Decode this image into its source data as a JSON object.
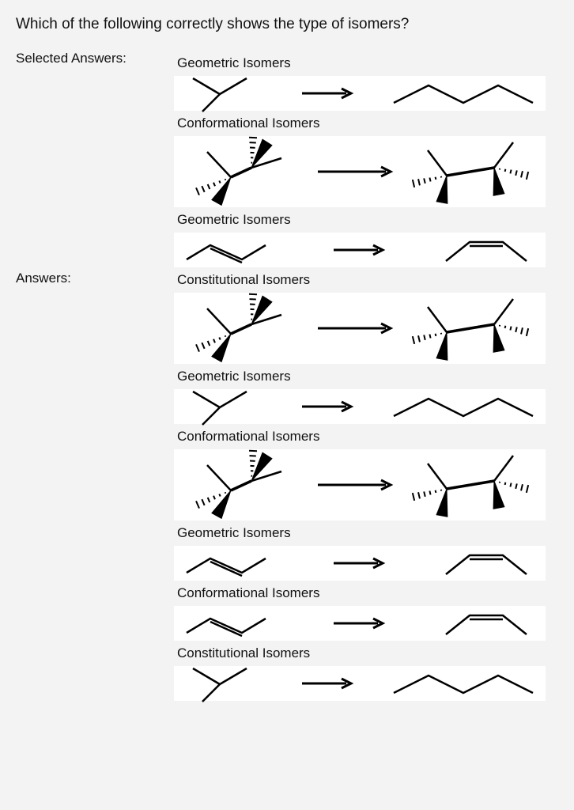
{
  "question": "Which of the following correctly shows the type of isomers?",
  "labels": {
    "selected": "Selected Answers:",
    "answers": "Answers:"
  },
  "selected_answers": [
    {
      "label": "Geometric Isomers",
      "left": "isobutane",
      "right": "butane",
      "height": "short"
    },
    {
      "label": "Conformational Isomers",
      "left": "eclipsed",
      "right": "staggered",
      "height": "tall"
    },
    {
      "label": "Geometric Isomers",
      "left": "trans",
      "right": "cis",
      "height": "short"
    }
  ],
  "all_answers": [
    {
      "label": "Constitutional Isomers",
      "left": "eclipsed",
      "right": "staggered",
      "height": "tall"
    },
    {
      "label": "Geometric Isomers",
      "left": "isobutane",
      "right": "butane",
      "height": "short"
    },
    {
      "label": "Conformational Isomers",
      "left": "eclipsed",
      "right": "staggered",
      "height": "tall"
    },
    {
      "label": "Geometric Isomers",
      "left": "trans",
      "right": "cis",
      "height": "short"
    },
    {
      "label": "Conformational Isomers",
      "left": "trans",
      "right": "cis",
      "height": "short"
    },
    {
      "label": "Constitutional Isomers",
      "left": "isobutane",
      "right": "butane",
      "height": "short"
    }
  ],
  "style": {
    "stroke": "#000000",
    "thin": 2.5,
    "thick": 3.5,
    "arrow_len": 90
  }
}
